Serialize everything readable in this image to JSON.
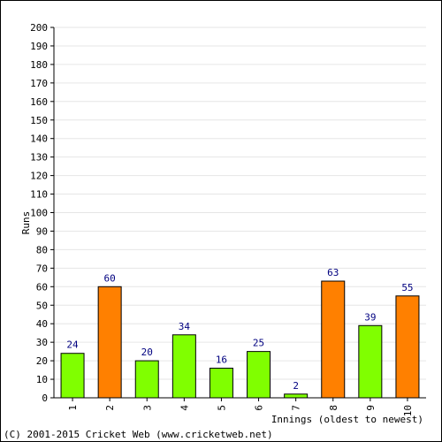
{
  "chart_data": {
    "type": "bar",
    "categories": [
      "1",
      "2",
      "3",
      "4",
      "5",
      "6",
      "7",
      "8",
      "9",
      "10"
    ],
    "values": [
      24,
      60,
      20,
      34,
      16,
      25,
      2,
      63,
      39,
      55
    ],
    "bar_colors": [
      "#80ff00",
      "#ff8000",
      "#80ff00",
      "#80ff00",
      "#80ff00",
      "#80ff00",
      "#80ff00",
      "#ff8000",
      "#80ff00",
      "#ff8000"
    ],
    "ylabel": "Runs",
    "xlabel": "Innings (oldest to newest)",
    "ylim": [
      0,
      200
    ],
    "ytick_step": 10,
    "grid": true
  },
  "footer": "(C) 2001-2015 Cricket Web (www.cricketweb.net)"
}
